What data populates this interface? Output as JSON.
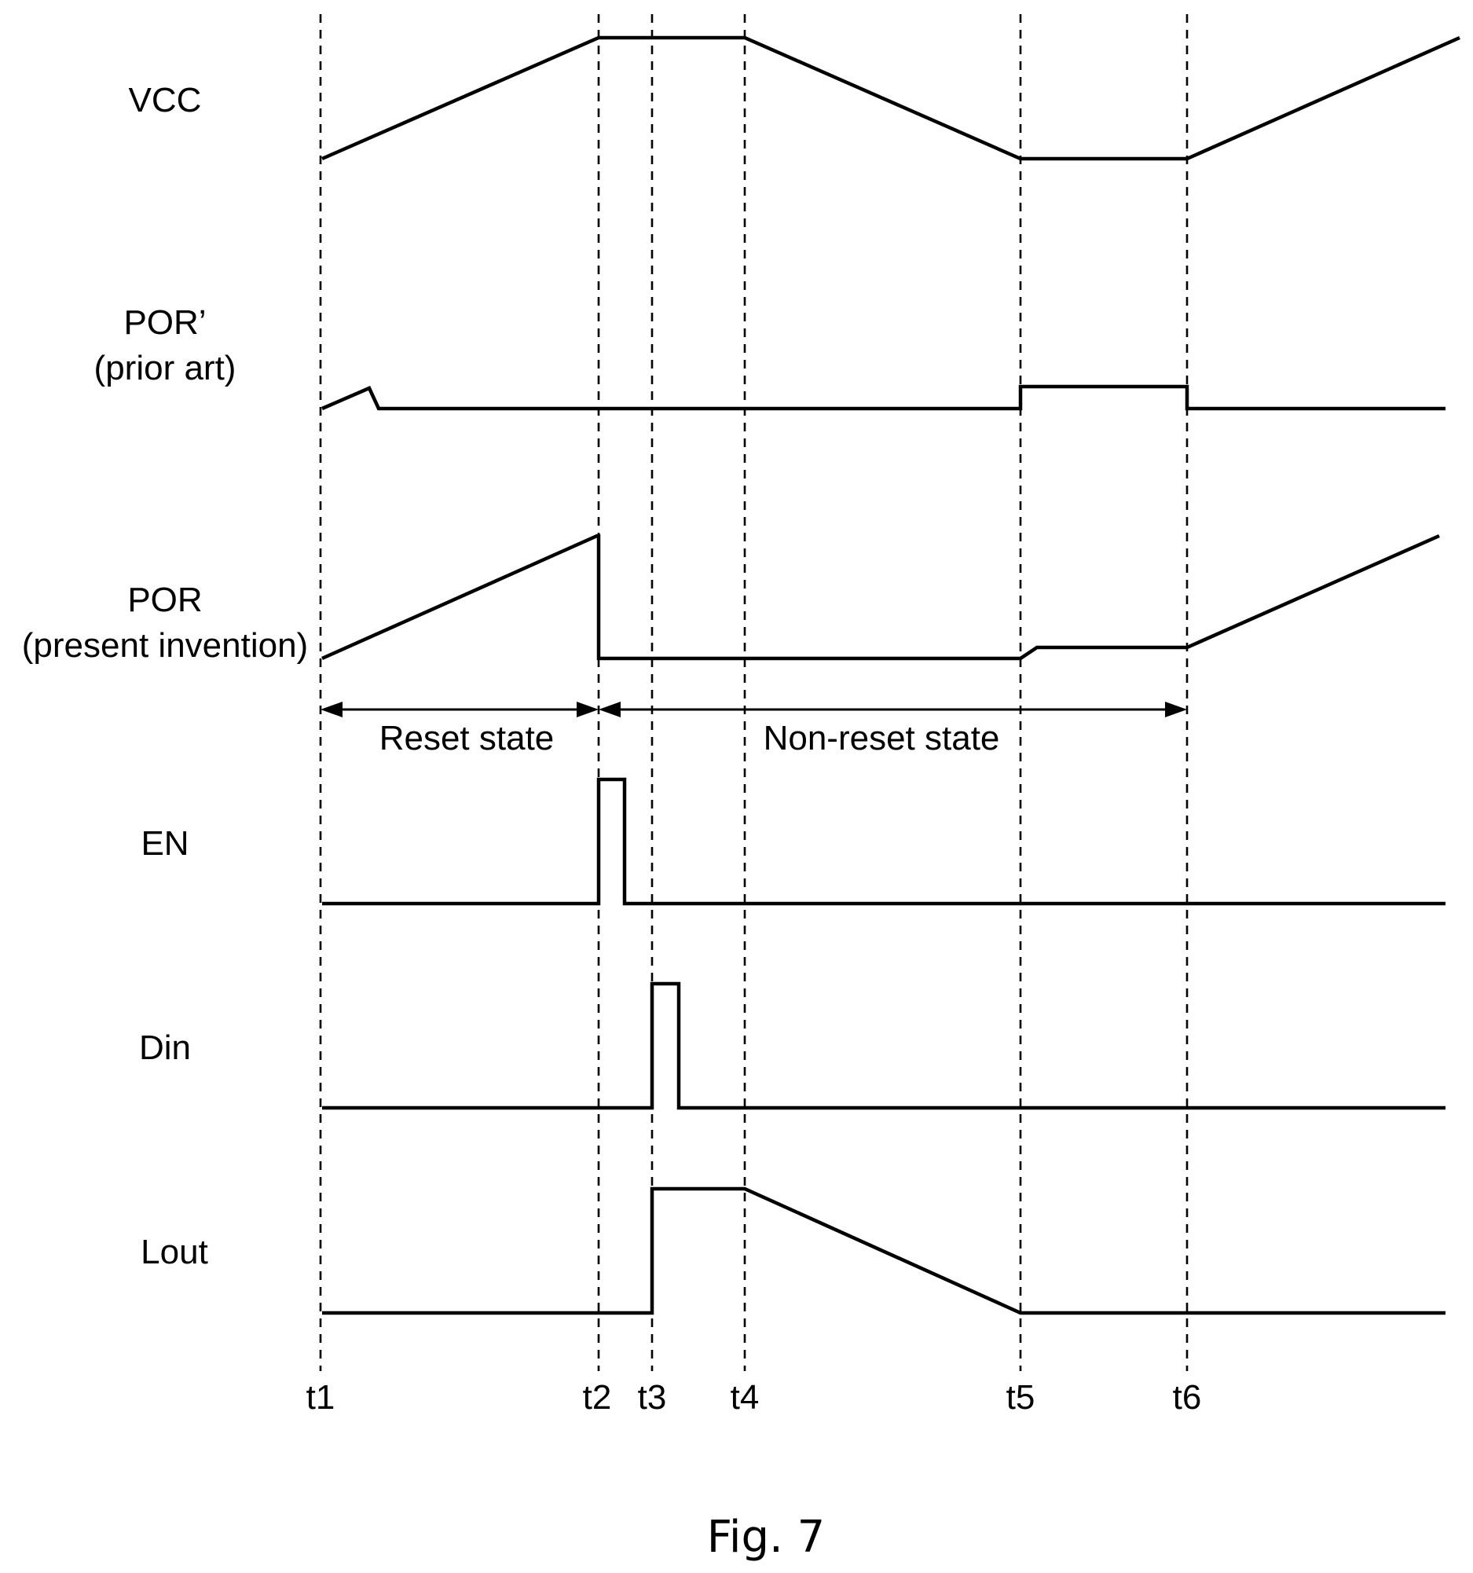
{
  "signals": [
    {
      "id": "vcc",
      "label_lines": [
        "VCC"
      ]
    },
    {
      "id": "por_prior",
      "label_lines": [
        "POR’",
        "(prior art)"
      ]
    },
    {
      "id": "por_invention",
      "label_lines": [
        "POR",
        "(present invention)"
      ]
    },
    {
      "id": "en",
      "label_lines": [
        "EN"
      ]
    },
    {
      "id": "din",
      "label_lines": [
        "Din"
      ]
    },
    {
      "id": "lout",
      "label_lines": [
        "Lout"
      ]
    }
  ],
  "time_markers": [
    "t1",
    "t2",
    "t3",
    "t4",
    "t5",
    "t6"
  ],
  "states": {
    "reset": "Reset state",
    "non_reset": "Non-reset state"
  },
  "figure_caption": "Fig. 7"
}
